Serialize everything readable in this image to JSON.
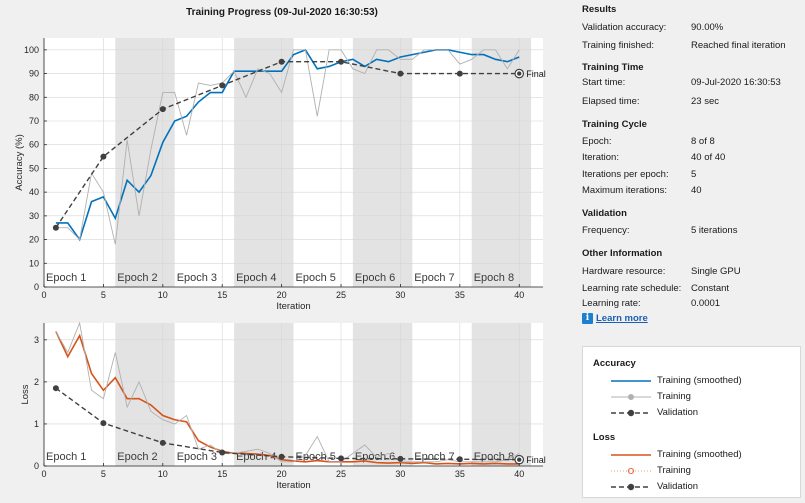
{
  "colors": {
    "accent_blue": "#0072bd",
    "accent_orange": "#d95319",
    "raw_gray": "#b0b0b0",
    "validation_dark": "#404040",
    "epoch_band": "#e3e3e3"
  },
  "plot_title": "Training Progress (09-Jul-2020 16:30:53)",
  "epoch_labels": [
    "Epoch 1",
    "Epoch 2",
    "Epoch 3",
    "Epoch 4",
    "Epoch 5",
    "Epoch 6",
    "Epoch 7",
    "Epoch 8"
  ],
  "final_label": "Final",
  "chart_data": [
    {
      "type": "line",
      "title": "Training Progress (09-Jul-2020 16:30:53)",
      "xlabel": "Iteration",
      "ylabel": "Accuracy (%)",
      "xlim": [
        0,
        42
      ],
      "ylim": [
        0,
        105
      ],
      "xticks": [
        0,
        5,
        10,
        15,
        20,
        25,
        30,
        35,
        40
      ],
      "yticks": [
        0,
        10,
        20,
        30,
        40,
        50,
        60,
        70,
        80,
        90,
        100
      ],
      "x": [
        1,
        2,
        3,
        4,
        5,
        6,
        7,
        8,
        9,
        10,
        11,
        12,
        13,
        14,
        15,
        16,
        17,
        18,
        19,
        20,
        21,
        22,
        23,
        24,
        25,
        26,
        27,
        28,
        29,
        30,
        31,
        32,
        33,
        34,
        35,
        36,
        37,
        38,
        39,
        40
      ],
      "series": [
        {
          "name": "Training (smoothed)",
          "color": "#0072bd",
          "values": [
            27,
            27,
            20,
            36,
            38,
            29,
            45,
            40,
            47,
            61,
            70,
            72,
            78,
            82,
            82,
            91,
            91,
            91,
            91,
            91,
            98,
            100,
            92,
            93,
            95,
            96,
            93,
            96,
            95,
            97,
            98,
            99,
            100,
            100,
            99,
            98,
            98,
            96,
            95,
            97
          ]
        },
        {
          "name": "Training",
          "color": "#b0b0b0",
          "values": [
            25,
            25,
            20,
            48,
            40,
            18,
            62,
            30,
            58,
            82,
            82,
            64,
            86,
            85,
            86,
            91,
            80,
            92,
            90,
            82,
            100,
            100,
            72,
            100,
            100,
            92,
            90,
            100,
            100,
            96,
            96,
            100,
            100,
            100,
            94,
            96,
            100,
            100,
            92,
            100
          ]
        },
        {
          "name": "Validation",
          "color": "#404040",
          "dashed": true,
          "x": [
            1,
            5,
            10,
            15,
            20,
            25,
            30,
            35,
            40
          ],
          "values": [
            25,
            55,
            75,
            85,
            95,
            95,
            90,
            90,
            90
          ]
        }
      ],
      "epoch_boundaries": [
        0,
        6,
        11,
        16,
        21,
        26,
        31,
        36,
        41
      ],
      "grid": true
    },
    {
      "type": "line",
      "xlabel": "Iteration",
      "ylabel": "Loss",
      "xlim": [
        0,
        42
      ],
      "ylim": [
        0,
        3.4
      ],
      "xticks": [
        0,
        5,
        10,
        15,
        20,
        25,
        30,
        35,
        40
      ],
      "yticks": [
        0,
        1,
        2,
        3
      ],
      "x": [
        1,
        2,
        3,
        4,
        5,
        6,
        7,
        8,
        9,
        10,
        11,
        12,
        13,
        14,
        15,
        16,
        17,
        18,
        19,
        20,
        21,
        22,
        23,
        24,
        25,
        26,
        27,
        28,
        29,
        30,
        31,
        32,
        33,
        34,
        35,
        36,
        37,
        38,
        39,
        40
      ],
      "series": [
        {
          "name": "Training (smoothed)",
          "color": "#d95319",
          "values": [
            3.2,
            2.6,
            3.1,
            2.2,
            1.8,
            2.1,
            1.6,
            1.6,
            1.45,
            1.2,
            1.1,
            1.05,
            0.6,
            0.45,
            0.35,
            0.3,
            0.3,
            0.28,
            0.25,
            0.15,
            0.12,
            0.1,
            0.13,
            0.1,
            0.1,
            0.1,
            0.12,
            0.08,
            0.07,
            0.08,
            0.06,
            0.08,
            0.05,
            0.06,
            0.05,
            0.06,
            0.05,
            0.06,
            0.05,
            0.05
          ]
        },
        {
          "name": "Training",
          "color": "#b0b0b0",
          "values": [
            3.2,
            2.7,
            3.4,
            1.8,
            1.6,
            2.7,
            1.4,
            2.0,
            1.3,
            1.1,
            1.0,
            1.2,
            0.4,
            0.5,
            0.3,
            0.3,
            0.35,
            0.4,
            0.3,
            0.1,
            0.1,
            0.25,
            0.7,
            0.1,
            0.1,
            0.3,
            0.5,
            0.2,
            0.3,
            0.1,
            0.1,
            0.1,
            0.1,
            0.15,
            0.1,
            0.1,
            0.1,
            0.1,
            0.15,
            0.3
          ]
        },
        {
          "name": "Validation",
          "color": "#404040",
          "dashed": true,
          "x": [
            1,
            5,
            10,
            15,
            20,
            25,
            30,
            35,
            40
          ],
          "values": [
            1.85,
            1.02,
            0.55,
            0.32,
            0.22,
            0.18,
            0.17,
            0.16,
            0.15
          ]
        }
      ],
      "epoch_boundaries": [
        0,
        6,
        11,
        16,
        21,
        26,
        31,
        36,
        41
      ],
      "grid": true
    }
  ],
  "info": {
    "results": {
      "title": "Results",
      "rows": [
        {
          "k": "Validation accuracy:",
          "v": "90.00%"
        },
        {
          "k": "Training finished:",
          "v": "Reached final iteration"
        }
      ]
    },
    "time": {
      "title": "Training Time",
      "rows": [
        {
          "k": "Start time:",
          "v": "09-Jul-2020 16:30:53"
        },
        {
          "k": "Elapsed time:",
          "v": "23 sec"
        }
      ]
    },
    "cycle": {
      "title": "Training Cycle",
      "rows": [
        {
          "k": "Epoch:",
          "v": "8 of 8"
        },
        {
          "k": "Iteration:",
          "v": "40 of 40"
        },
        {
          "k": "Iterations per epoch:",
          "v": "5"
        },
        {
          "k": "Maximum iterations:",
          "v": "40"
        }
      ]
    },
    "validation": {
      "title": "Validation",
      "rows": [
        {
          "k": "Frequency:",
          "v": "5 iterations"
        }
      ]
    },
    "other": {
      "title": "Other Information",
      "rows": [
        {
          "k": "Hardware resource:",
          "v": "Single GPU"
        },
        {
          "k": "Learning rate schedule:",
          "v": "Constant"
        },
        {
          "k": "Learning rate:",
          "v": "0.0001"
        }
      ]
    }
  },
  "learn_more": "Learn more",
  "legend": {
    "accuracy_title": "Accuracy",
    "loss_title": "Loss",
    "smoothed": "Training (smoothed)",
    "training": "Training",
    "validation": "Validation"
  }
}
